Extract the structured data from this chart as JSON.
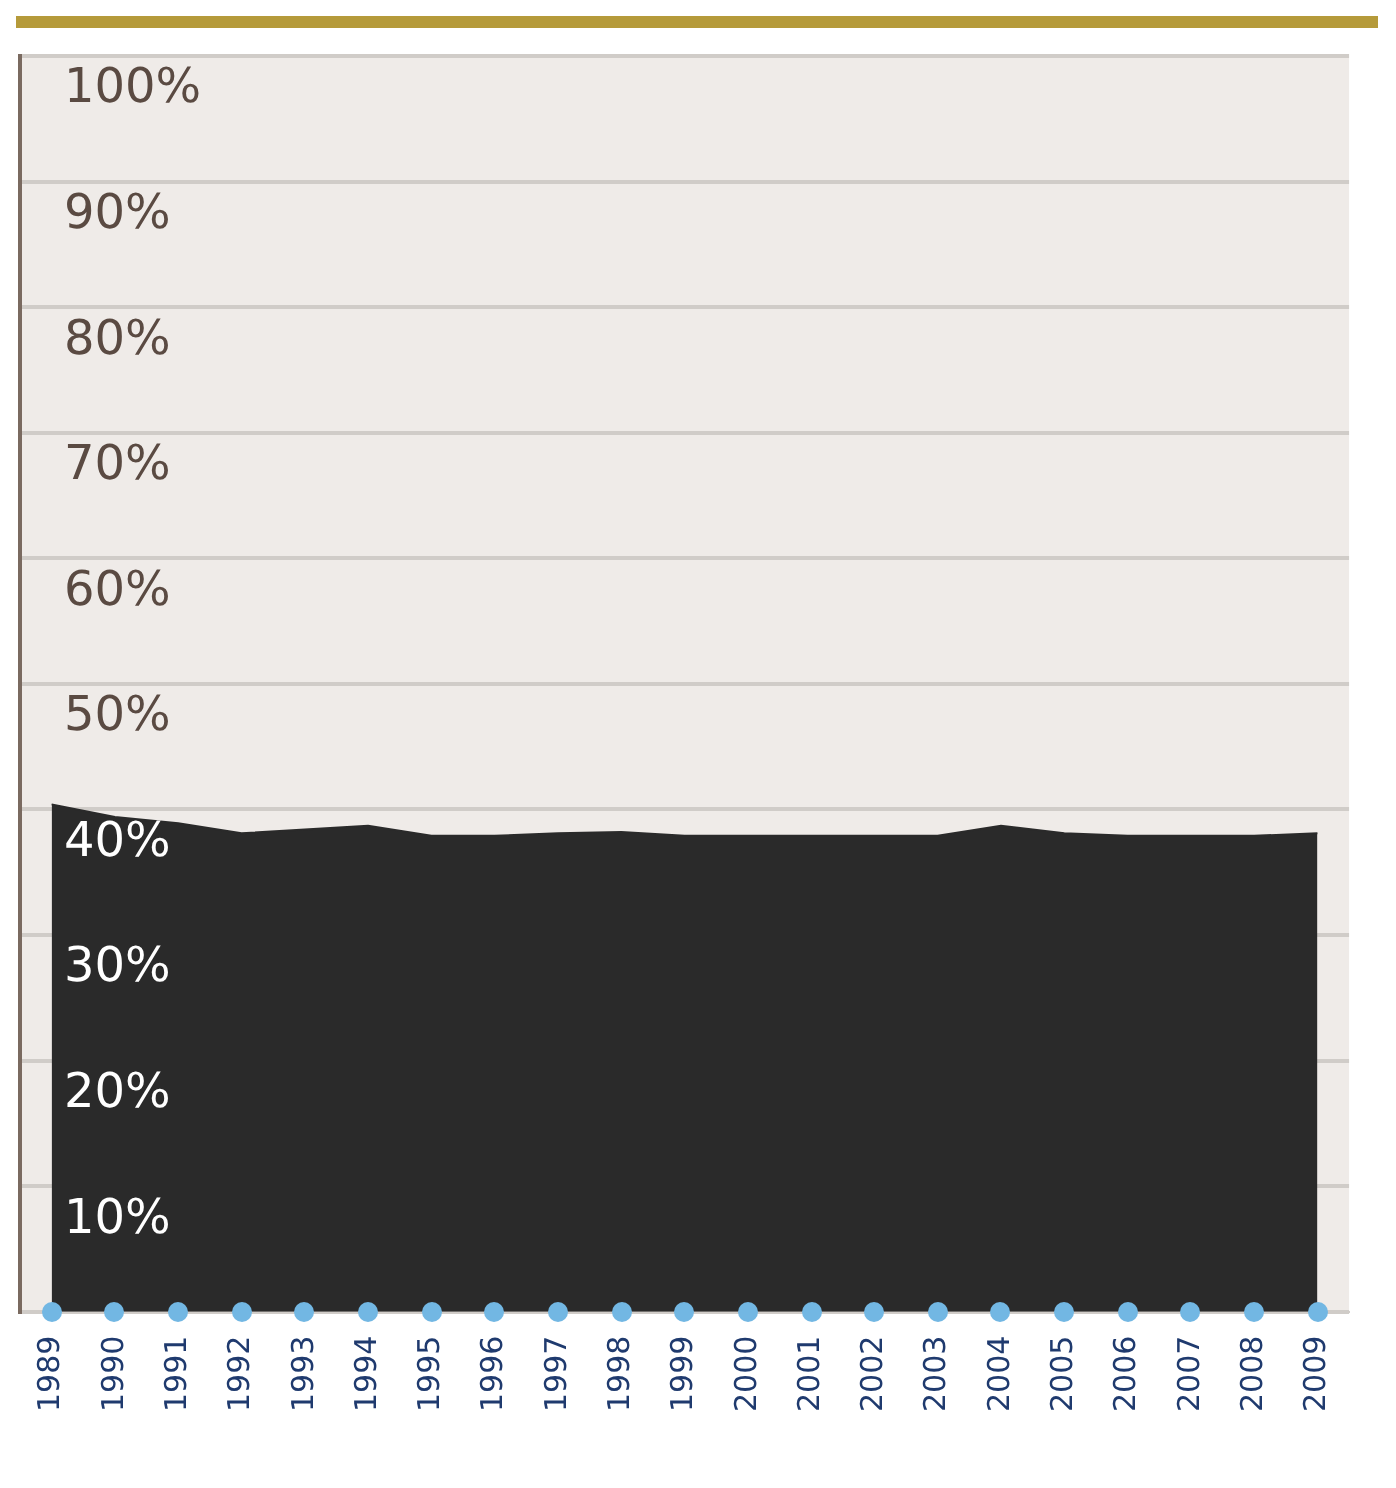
{
  "chart_data": {
    "type": "area",
    "categories": [
      "1989",
      "1990",
      "1991",
      "1992",
      "1993",
      "1994",
      "1995",
      "1996",
      "1997",
      "1998",
      "1999",
      "2000",
      "2001",
      "2002",
      "2003",
      "2004",
      "2005",
      "2006",
      "2007",
      "2008",
      "2009"
    ],
    "values": [
      40.4,
      39.4,
      38.9,
      38.1,
      38.4,
      38.7,
      37.9,
      37.9,
      38.1,
      38.2,
      37.9,
      37.9,
      37.9,
      37.9,
      37.9,
      38.7,
      38.1,
      37.9,
      37.9,
      37.9,
      38.1
    ],
    "color": "#2a2a2a",
    "ylim": [
      0,
      100
    ],
    "yticks": [
      {
        "value": 0,
        "label": null
      },
      {
        "value": 10,
        "label": "10%"
      },
      {
        "value": 20,
        "label": "20%"
      },
      {
        "value": 30,
        "label": "30%"
      },
      {
        "value": 40,
        "label": "40%"
      },
      {
        "value": 50,
        "label": "50%"
      },
      {
        "value": 60,
        "label": "60%"
      },
      {
        "value": 70,
        "label": "70%"
      },
      {
        "value": 80,
        "label": "80%"
      },
      {
        "value": 90,
        "label": "90%"
      },
      {
        "value": 100,
        "label": "100%"
      }
    ],
    "grid": "y",
    "legend": false
  }
}
